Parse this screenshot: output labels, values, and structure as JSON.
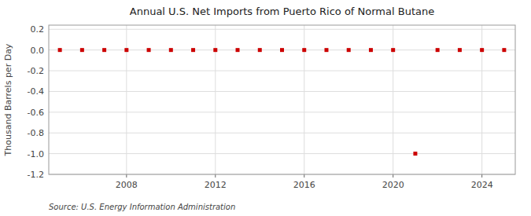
{
  "chart_data": {
    "type": "scatter",
    "title": "Annual U.S. Net Imports from Puerto Rico of Normal Butane",
    "y_label": "Thousand Barrels per Day",
    "annotations": [
      "Source: U.S. Energy Information Administration"
    ],
    "x": [
      2005,
      2006,
      2007,
      2008,
      2009,
      2010,
      2011,
      2012,
      2013,
      2014,
      2015,
      2016,
      2017,
      2018,
      2019,
      2020,
      2021,
      2022,
      2023,
      2024,
      2025
    ],
    "values": [
      0,
      0,
      0,
      0,
      0,
      0,
      0,
      0,
      0,
      0,
      0,
      0,
      0,
      0,
      0,
      0,
      -1.0,
      0,
      0,
      0,
      0
    ],
    "color": "#cc0000",
    "marker": "square",
    "xlim": [
      2004.5,
      2025.5
    ],
    "xticks": [
      2008,
      2012,
      2016,
      2020,
      2024
    ],
    "ylim": [
      -1.2,
      0.24
    ],
    "yticks": [
      0.2,
      {
        "value": 0.0,
        "label": "0.0"
      },
      -0.2,
      -0.4,
      -0.6,
      -0.8,
      {
        "value": -1.0,
        "label": "-1.0"
      },
      -1.2
    ],
    "grid": true
  }
}
